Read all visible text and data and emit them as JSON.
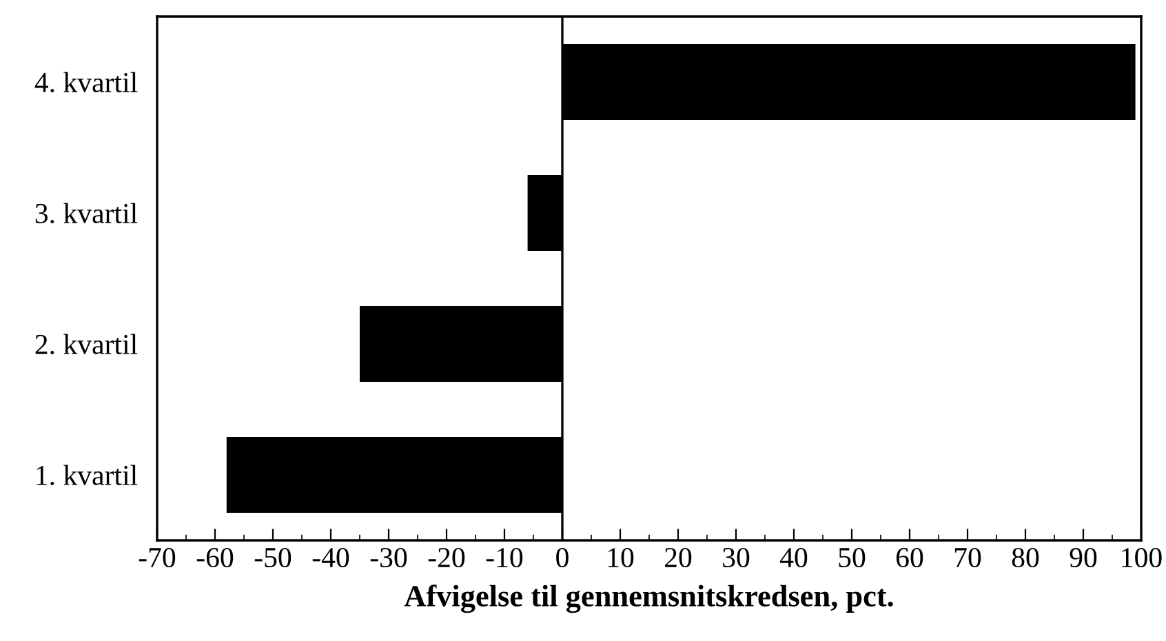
{
  "chart_data": {
    "type": "bar",
    "orientation": "horizontal",
    "categories": [
      "4. kvartil",
      "3. kvartil",
      "2. kvartil",
      "1. kvartil"
    ],
    "values": [
      99,
      -6,
      -35,
      -58
    ],
    "color": "#000000",
    "xlabel": "Afvigelse til gennemsnitskredsen, pct.",
    "xlim": [
      -70,
      100
    ],
    "xticks": [
      -70,
      -60,
      -50,
      -40,
      -30,
      -20,
      -10,
      0,
      10,
      20,
      30,
      40,
      50,
      60,
      70,
      80,
      90,
      100
    ],
    "ref_lines": [
      {
        "axis": "x",
        "value": 0,
        "color": "#000000"
      }
    ],
    "grid": false,
    "legend": false
  }
}
